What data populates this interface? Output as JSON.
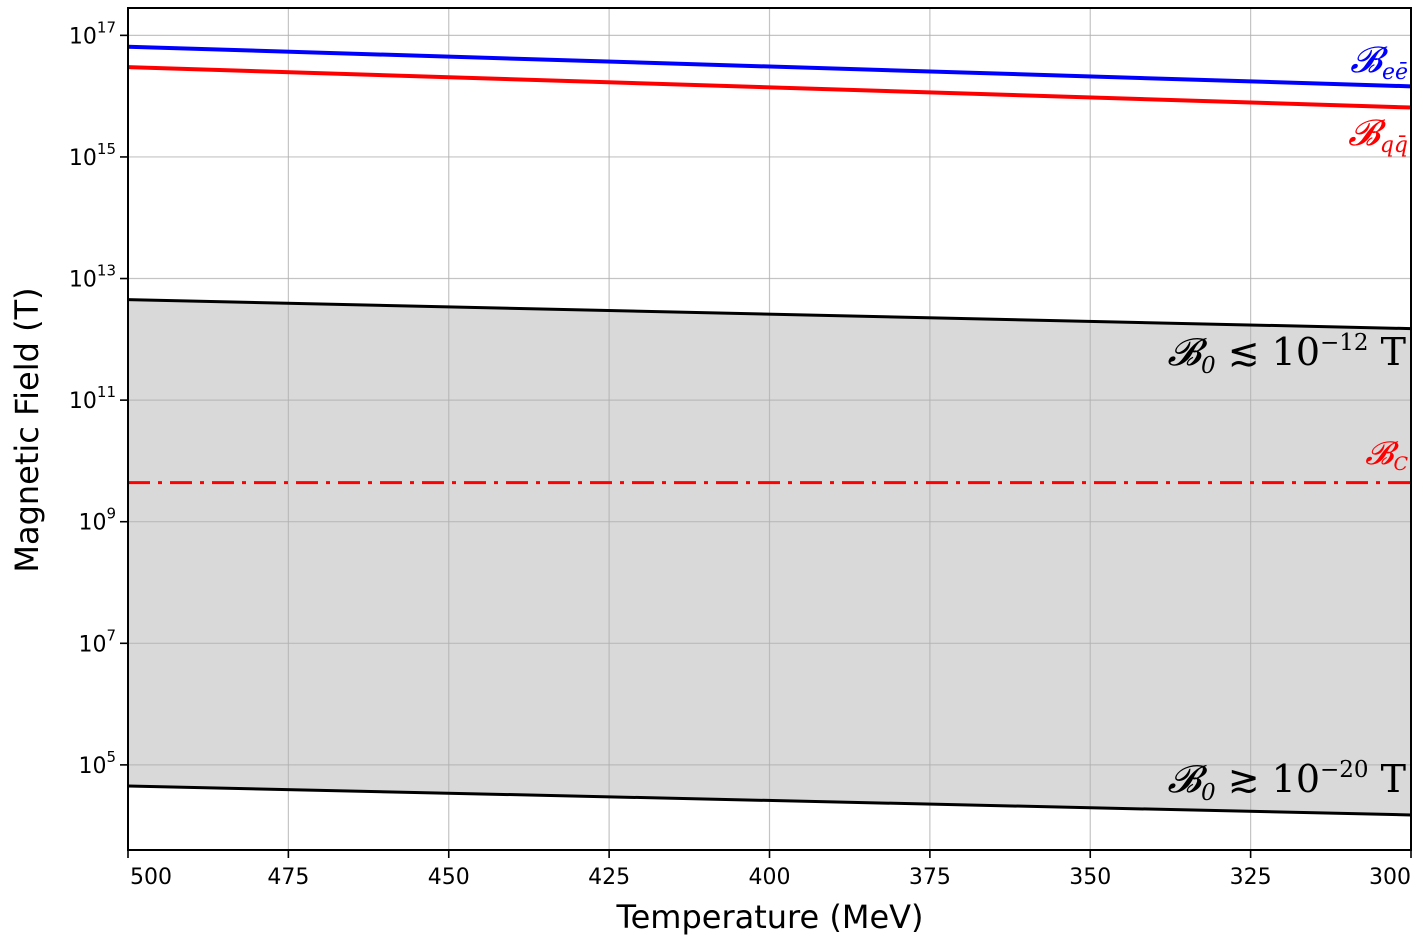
{
  "chart_data": {
    "type": "line",
    "title": "",
    "xlabel": "Temperature (MeV)",
    "ylabel": "Magnetic Field (T)",
    "xlim": [
      500,
      300
    ],
    "x_inverted": true,
    "ylim_log10": [
      3.6,
      17.45
    ],
    "yscale": "log",
    "grid": true,
    "x_ticks": [
      500,
      475,
      450,
      425,
      400,
      375,
      350,
      325,
      300
    ],
    "x_tick_labels": [
      "500",
      "475",
      "450",
      "425",
      "400",
      "375",
      "350",
      "325",
      "300"
    ],
    "y_ticks_log10": [
      5,
      7,
      9,
      11,
      13,
      15,
      17
    ],
    "y_tick_labels": [
      {
        "base": "10",
        "exp": "5"
      },
      {
        "base": "10",
        "exp": "7"
      },
      {
        "base": "10",
        "exp": "9"
      },
      {
        "base": "10",
        "exp": "11"
      },
      {
        "base": "10",
        "exp": "13"
      },
      {
        "base": "10",
        "exp": "15"
      },
      {
        "base": "10",
        "exp": "17"
      }
    ],
    "series": [
      {
        "key": "B_ee",
        "color": "#0000ff",
        "style": "solid",
        "x": [
          500,
          300
        ],
        "y": [
          6.5e+16,
          1.45e+16
        ],
        "label": {
          "main": "𝓑",
          "sub": "eē",
          "sup": "",
          "after": ""
        }
      },
      {
        "key": "B_qq",
        "color": "#ff0000",
        "style": "solid",
        "x": [
          500,
          300
        ],
        "y": [
          3e+16,
          6500000000000000.0
        ],
        "label": {
          "main": "𝓑",
          "sub": "qq̄",
          "sup": "",
          "after": ""
        }
      },
      {
        "key": "B0_upper",
        "color": "#000000",
        "style": "solid",
        "x": [
          500,
          300
        ],
        "y": [
          4500000000000.0,
          1500000000000.0
        ],
        "label": {
          "main": "𝓑",
          "sub": "0",
          "rel": " ≲ 10",
          "sup": "−12",
          "after": " T"
        }
      },
      {
        "key": "B0_lower",
        "color": "#000000",
        "style": "solid",
        "x": [
          500,
          300
        ],
        "y": [
          45000.0,
          15000.0
        ],
        "label": {
          "main": "𝓑",
          "sub": "0",
          "rel": " ≳ 10",
          "sup": "−20",
          "after": " T"
        }
      },
      {
        "key": "B_C",
        "color": "#ff0000",
        "style": "dashdot",
        "x": [
          500,
          300
        ],
        "y": [
          4400000000.0,
          4400000000.0
        ],
        "label": {
          "main": "𝓑",
          "sub": "C",
          "sup": "",
          "after": ""
        }
      }
    ],
    "shaded_region": {
      "between": [
        "B0_lower",
        "B0_upper"
      ],
      "color": "#d9d9d9"
    }
  }
}
